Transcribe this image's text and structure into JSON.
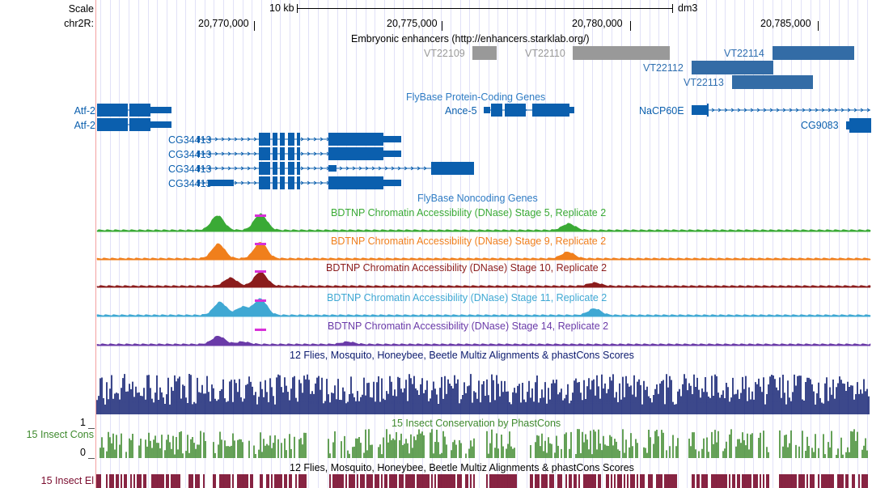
{
  "header": {
    "scale_label": "Scale",
    "chrom_label": "chr2R:",
    "scale_bar": "10 kb",
    "assembly": "dm3",
    "coords": [
      "20,770,000",
      "20,775,000",
      "20,780,000",
      "20,785,000"
    ]
  },
  "enhancers": {
    "title": "Embryonic enhancers (http://enhancers.starklab.org/)",
    "items": [
      "VT22109",
      "VT22110",
      "VT22112",
      "VT22113",
      "VT22114"
    ]
  },
  "protein_genes": {
    "title": "FlyBase Protein-Coding Genes",
    "atf2": "Atf-2",
    "ance5": "Ance-5",
    "nacp60e": "NaCP60E",
    "cg9083": "CG9083",
    "cg34413": "CG34413"
  },
  "noncoding": {
    "title": "FlyBase Noncoding Genes"
  },
  "dnase_tracks": [
    {
      "title": "BDTNP Chromatin Accessibility (DNase) Stage 5, Replicate 2",
      "color": "#3aaa35"
    },
    {
      "title": "BDTNP Chromatin Accessibility (DNase) Stage 9, Replicate 2",
      "color": "#f07f1c"
    },
    {
      "title": "BDTNP Chromatin Accessibility (DNase) Stage 10, Replicate 2",
      "color": "#8b1c1c"
    },
    {
      "title": "BDTNP Chromatin Accessibility (DNase) Stage 11, Replicate 2",
      "color": "#3fa8d3"
    },
    {
      "title": "BDTNP Chromatin Accessibility (DNase) Stage 14, Replicate 2",
      "color": "#6a3aa8"
    }
  ],
  "multiz": {
    "title": "12 Flies, Mosquito, Honeybee, Beetle Multiz Alignments & phastCons Scores",
    "color": "#0b1a6e"
  },
  "insect_cons": {
    "title": "15 Insect Conservation by PhastCons",
    "side_label": "15 Insect Cons",
    "axis_max": "1",
    "axis_min": "0",
    "color": "#3f8a2e"
  },
  "insect_el": {
    "title": "12 Flies, Mosquito, Honeybee, Beetle Multiz Alignments & phastCons Scores",
    "side_label": "15 Insect El",
    "color": "#7a0c2e"
  },
  "colors": {
    "gene_blue": "#0b5fae",
    "enhancer_blue": "#336ca6",
    "enhancer_gray": "#999999",
    "label_blue": "#2f7cc4",
    "grid": "#c8c8f0"
  }
}
